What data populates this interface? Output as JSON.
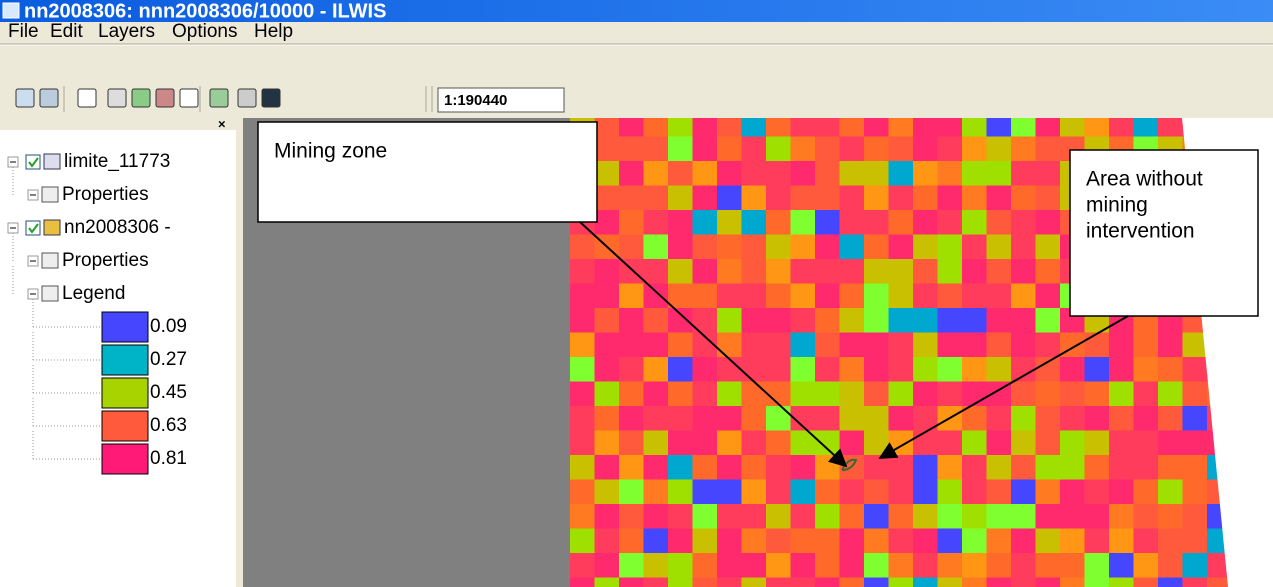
{
  "window": {
    "title": "nn2008306: nnn2008306/10000 - ILWIS",
    "menu": [
      "File",
      "Edit",
      "Layers",
      "Options",
      "Help"
    ],
    "scale": "1:190440"
  },
  "layers": [
    {
      "name": "limite_11773",
      "children": [
        "Properties"
      ]
    },
    {
      "name": "nn2008306 -",
      "children": [
        "Properties",
        "Legend"
      ]
    }
  ],
  "legend": [
    {
      "value": 0.09,
      "color": "#4646ff"
    },
    {
      "value": 0.27,
      "color": "#00b4c8"
    },
    {
      "value": 0.45,
      "color": "#a8d200"
    },
    {
      "value": 0.63,
      "color": "#ff5a3c"
    },
    {
      "value": 0.81,
      "color": "#ff1a78"
    }
  ],
  "annotations": [
    {
      "lines": [
        "Mining zone"
      ]
    },
    {
      "lines": [
        "Area without",
        "mining",
        "intervention"
      ]
    }
  ]
}
